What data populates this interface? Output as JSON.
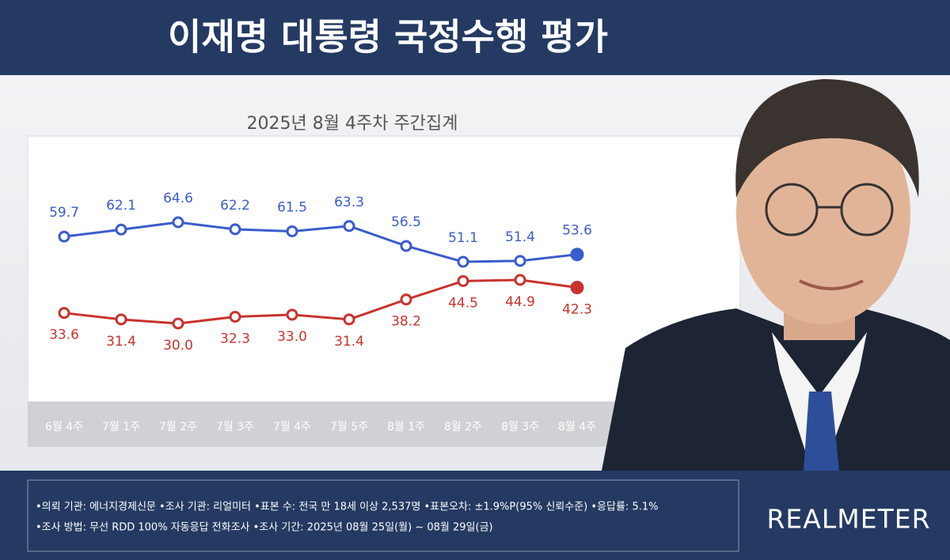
{
  "header": {
    "title": "이재명 대통령 국정수행 평가"
  },
  "chart_data": {
    "type": "line",
    "subtitle": "2025년 8월 4주차 주간집계",
    "categories": [
      "6월 4주",
      "7월 1주",
      "7월 2주",
      "7월 3주",
      "7월 4주",
      "7월 5주",
      "8월 1주",
      "8월 2주",
      "8월 3주",
      "8월 4주"
    ],
    "series": [
      {
        "color": "#3a5ccc",
        "values": [
          59.7,
          62.1,
          64.6,
          62.2,
          61.5,
          63.3,
          56.5,
          51.1,
          51.4,
          53.6
        ],
        "value_labels": [
          "59.7",
          "62.1",
          "64.6",
          "62.2",
          "61.5",
          "63.3",
          "56.5",
          "51.1",
          "51.4",
          "53.6"
        ]
      },
      {
        "color": "#c8332e",
        "values": [
          33.6,
          31.4,
          30.0,
          32.3,
          33.0,
          31.4,
          38.2,
          44.5,
          44.9,
          42.3
        ],
        "value_labels": [
          "33.6",
          "31.4",
          "30.0",
          "32.3",
          "33.0",
          "31.4",
          "38.2",
          "44.5",
          "44.9",
          "42.3"
        ]
      }
    ]
  },
  "footer": {
    "notes": [
      "•의뢰 기관: 에너지경제신문 •조사 기관: 리얼미터 •표본 수: 전국 만 18세 이상 2,537명 •표본오차: ±1.9%P(95% 신뢰수준) •응답률: 5.1%",
      "•조사 방법: 무선 RDD 100% 자동응답 전화조사 •조사 기간: 2025년 08월 25일(월) ~ 08월 29일(금)"
    ],
    "logo": "REALMETER"
  }
}
